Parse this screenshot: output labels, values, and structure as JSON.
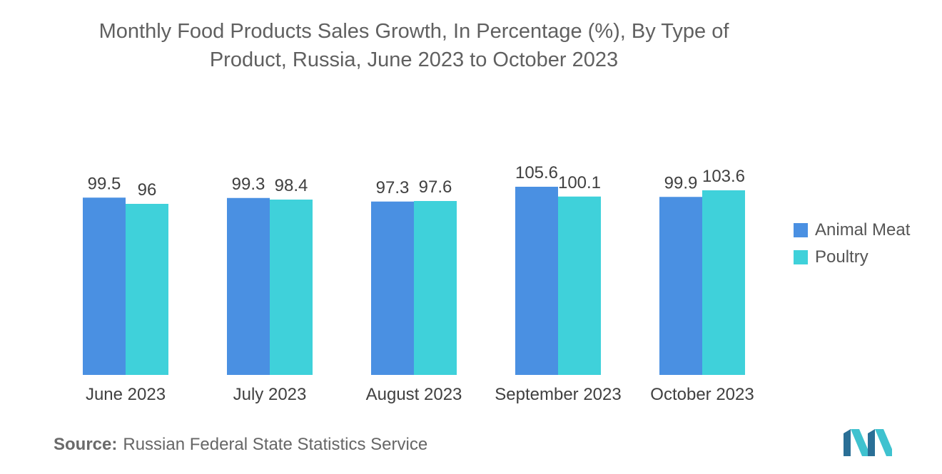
{
  "colors": {
    "animal_meat": "#4a90e2",
    "poultry": "#3fd1da",
    "logo_dark": "#2a6f96",
    "logo_light": "#3fc2cf"
  },
  "logo": {
    "icon": "mn-logo-icon"
  },
  "source": {
    "label": "Source:",
    "text": "Russian Federal State Statistics Service"
  },
  "chart_data": {
    "type": "bar",
    "title_lines": [
      "Monthly Food Products Sales Growth, In Percentage (%), By Type of",
      "Product, Russia, June 2023 to October 2023"
    ],
    "categories": [
      "June 2023",
      "July 2023",
      "August 2023",
      "September 2023",
      "October 2023"
    ],
    "series": [
      {
        "name": "Animal Meat",
        "values": [
          99.5,
          99.3,
          97.3,
          105.6,
          99.9
        ],
        "labels": [
          "99.5",
          "99.3",
          "97.3",
          "105.6",
          "99.9"
        ]
      },
      {
        "name": "Poultry",
        "values": [
          96,
          98.4,
          97.6,
          100.1,
          103.6
        ],
        "labels": [
          "96",
          "98.4",
          "97.6",
          "100.1",
          "103.6"
        ]
      }
    ],
    "xlabel": "",
    "ylabel": "",
    "ylim": [
      0,
      110
    ],
    "grid": false,
    "legend_position": "right"
  }
}
